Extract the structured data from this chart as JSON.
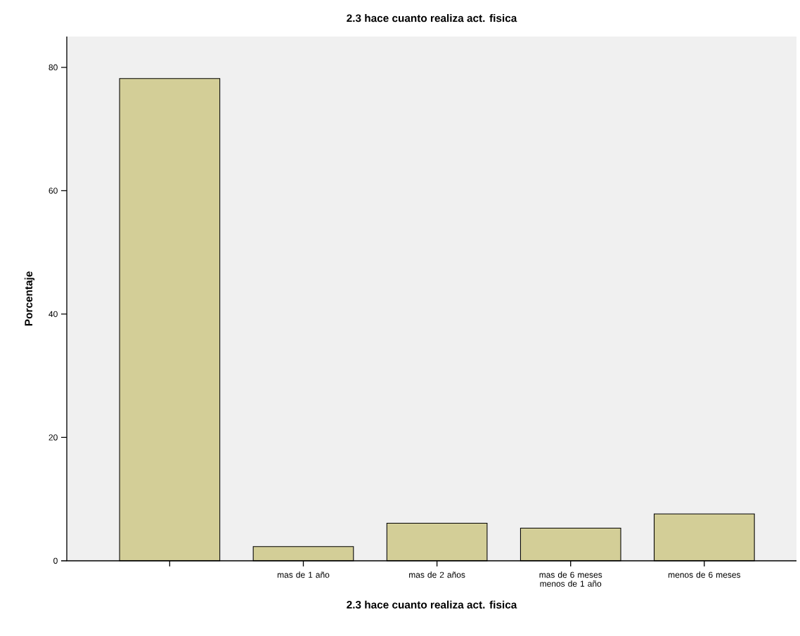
{
  "chart_data": {
    "type": "bar",
    "title": "2.3 hace cuanto realiza act. fisica",
    "xlabel": "2.3 hace cuanto realiza act. fisica",
    "ylabel": "Porcentaje",
    "categories": [
      null,
      "mas de 1 año",
      "mas de 2 años",
      "mas de 6 meses menos de 1 año",
      "menos de 6 meses"
    ],
    "values": [
      78.2,
      2.3,
      6.1,
      5.3,
      7.6
    ],
    "color": "#d3ce97",
    "ylim": [
      0,
      85
    ],
    "yticks": [
      0,
      20,
      40,
      60,
      80
    ],
    "grid": false
  }
}
